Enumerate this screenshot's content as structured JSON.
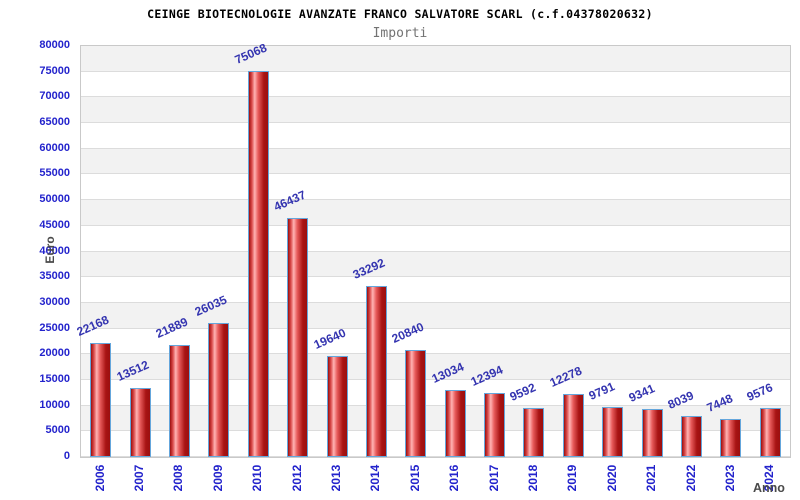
{
  "chart_data": {
    "type": "bar",
    "title": "CEINGE BIOTECNOLOGIE AVANZATE FRANCO SALVATORE SCARL (c.f.04378020632)",
    "subtitle": "Importi",
    "xlabel": "Anno",
    "ylabel": "Euro",
    "categories": [
      "2006",
      "2007",
      "2008",
      "2009",
      "2010",
      "2012",
      "2013",
      "2014",
      "2015",
      "2016",
      "2017",
      "2018",
      "2019",
      "2020",
      "2021",
      "2022",
      "2023",
      "2024"
    ],
    "values": [
      22168,
      13512,
      21889,
      26035,
      75068,
      46437,
      19640,
      33292,
      20840,
      13034,
      12394,
      9592,
      12278,
      9791,
      9341,
      8039,
      7448,
      9576
    ],
    "ylim": [
      0,
      80000
    ],
    "ytick_step": 5000,
    "grid": "horizontal alternating bands gray/white every 5000, gray band at top",
    "legend": "none",
    "bar_value_labels": true,
    "colors": {
      "background": "#ffffff",
      "title": "#000000",
      "subtitle": "#737373",
      "plot_border": "#c9c9c9",
      "band_gray": "#f2f2f2",
      "band_white": "#ffffff",
      "band_line": "#dcdcdc",
      "tick_label": "#2323cc",
      "value_label": "#3434b0",
      "axis_label": "#4a4a4a",
      "bar_border": "#64a6dc",
      "bar_dark": "#9c0f0f",
      "bar_mid": "#d94a4a",
      "bar_light": "#ffb3b3",
      "bar_mid2": "#e85c5c",
      "bar_dark2": "#a81414"
    }
  }
}
